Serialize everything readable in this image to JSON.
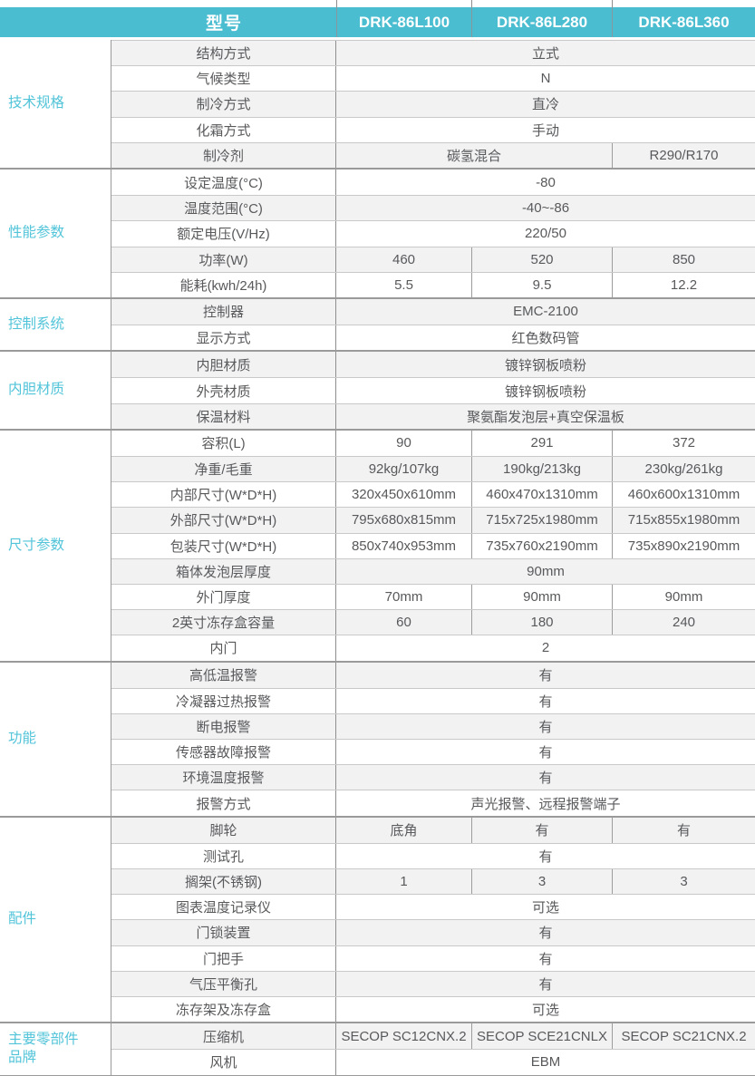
{
  "colors": {
    "header_bg": "#4BBDD0",
    "group_label_text": "#52C4D9",
    "stripe_bg": "#F2F2F3",
    "body_text": "#58595B"
  },
  "table": {
    "header": {
      "label": "型号",
      "models": [
        "DRK-86L100",
        "DRK-86L280",
        "DRK-86L360"
      ]
    },
    "groups": [
      {
        "name": "技术规格",
        "rows": [
          {
            "param": "结构方式",
            "values": [
              {
                "text": "立式",
                "span": 3
              }
            ]
          },
          {
            "param": "气候类型",
            "values": [
              {
                "text": "N",
                "span": 3
              }
            ]
          },
          {
            "param": "制冷方式",
            "values": [
              {
                "text": "直冷",
                "span": 3
              }
            ]
          },
          {
            "param": "化霜方式",
            "values": [
              {
                "text": "手动",
                "span": 3
              }
            ]
          },
          {
            "param": "制冷剂",
            "values": [
              {
                "text": "碳氢混合",
                "span": 2
              },
              {
                "text": "R290/R170",
                "span": 1
              }
            ]
          }
        ]
      },
      {
        "name": "性能参数",
        "rows": [
          {
            "param": "设定温度(°C)",
            "values": [
              {
                "text": "-80",
                "span": 3
              }
            ]
          },
          {
            "param": "温度范围(°C)",
            "values": [
              {
                "text": "-40~-86",
                "span": 3
              }
            ]
          },
          {
            "param": "额定电压(V/Hz)",
            "values": [
              {
                "text": "220/50",
                "span": 3
              }
            ]
          },
          {
            "param": "功率(W)",
            "values": [
              {
                "text": "460",
                "span": 1
              },
              {
                "text": "520",
                "span": 1
              },
              {
                "text": "850",
                "span": 1
              }
            ]
          },
          {
            "param": "能耗(kwh/24h)",
            "values": [
              {
                "text": "5.5",
                "span": 1
              },
              {
                "text": "9.5",
                "span": 1
              },
              {
                "text": "12.2",
                "span": 1
              }
            ]
          }
        ]
      },
      {
        "name": "控制系统",
        "rows": [
          {
            "param": "控制器",
            "values": [
              {
                "text": "EMC-2100",
                "span": 3
              }
            ]
          },
          {
            "param": "显示方式",
            "values": [
              {
                "text": "红色数码管",
                "span": 3
              }
            ]
          }
        ]
      },
      {
        "name": "内胆材质",
        "rows": [
          {
            "param": "内胆材质",
            "values": [
              {
                "text": "镀锌钢板喷粉",
                "span": 3
              }
            ]
          },
          {
            "param": "外壳材质",
            "values": [
              {
                "text": "镀锌钢板喷粉",
                "span": 3
              }
            ]
          },
          {
            "param": "保温材料",
            "values": [
              {
                "text": "聚氨酯发泡层+真空保温板",
                "span": 3
              }
            ]
          }
        ]
      },
      {
        "name": "尺寸参数",
        "rows": [
          {
            "param": "容积(L)",
            "values": [
              {
                "text": "90",
                "span": 1
              },
              {
                "text": "291",
                "span": 1
              },
              {
                "text": "372",
                "span": 1
              }
            ]
          },
          {
            "param": "净重/毛重",
            "values": [
              {
                "text": "92kg/107kg",
                "span": 1
              },
              {
                "text": "190kg/213kg",
                "span": 1
              },
              {
                "text": "230kg/261kg",
                "span": 1
              }
            ]
          },
          {
            "param": "内部尺寸(W*D*H)",
            "values": [
              {
                "text": "320x450x610mm",
                "span": 1
              },
              {
                "text": "460x470x1310mm",
                "span": 1
              },
              {
                "text": "460x600x1310mm",
                "span": 1
              }
            ]
          },
          {
            "param": "外部尺寸(W*D*H)",
            "values": [
              {
                "text": "795x680x815mm",
                "span": 1
              },
              {
                "text": "715x725x1980mm",
                "span": 1
              },
              {
                "text": "715x855x1980mm",
                "span": 1
              }
            ]
          },
          {
            "param": "包装尺寸(W*D*H)",
            "values": [
              {
                "text": "850x740x953mm",
                "span": 1
              },
              {
                "text": "735x760x2190mm",
                "span": 1
              },
              {
                "text": "735x890x2190mm",
                "span": 1
              }
            ]
          },
          {
            "param": "箱体发泡层厚度",
            "values": [
              {
                "text": "90mm",
                "span": 3
              }
            ]
          },
          {
            "param": "外门厚度",
            "values": [
              {
                "text": "70mm",
                "span": 1
              },
              {
                "text": "90mm",
                "span": 1
              },
              {
                "text": "90mm",
                "span": 1
              }
            ]
          },
          {
            "param": "2英寸冻存盒容量",
            "values": [
              {
                "text": "60",
                "span": 1
              },
              {
                "text": "180",
                "span": 1
              },
              {
                "text": "240",
                "span": 1
              }
            ]
          },
          {
            "param": "内门",
            "values": [
              {
                "text": "2",
                "span": 3
              }
            ]
          }
        ]
      },
      {
        "name": "功能",
        "rows": [
          {
            "param": "高低温报警",
            "values": [
              {
                "text": "有",
                "span": 3
              }
            ]
          },
          {
            "param": "冷凝器过热报警",
            "values": [
              {
                "text": "有",
                "span": 3
              }
            ]
          },
          {
            "param": "断电报警",
            "values": [
              {
                "text": "有",
                "span": 3
              }
            ]
          },
          {
            "param": "传感器故障报警",
            "values": [
              {
                "text": "有",
                "span": 3
              }
            ]
          },
          {
            "param": "环境温度报警",
            "values": [
              {
                "text": "有",
                "span": 3
              }
            ]
          },
          {
            "param": "报警方式",
            "values": [
              {
                "text": "声光报警、远程报警端子",
                "span": 3
              }
            ]
          }
        ]
      },
      {
        "name": "配件",
        "rows": [
          {
            "param": "脚轮",
            "values": [
              {
                "text": "底角",
                "span": 1
              },
              {
                "text": "有",
                "span": 1
              },
              {
                "text": "有",
                "span": 1
              }
            ]
          },
          {
            "param": "测试孔",
            "values": [
              {
                "text": "有",
                "span": 3
              }
            ]
          },
          {
            "param": "搁架(不锈钢)",
            "values": [
              {
                "text": "1",
                "span": 1
              },
              {
                "text": "3",
                "span": 1
              },
              {
                "text": "3",
                "span": 1
              }
            ]
          },
          {
            "param": "图表温度记录仪",
            "values": [
              {
                "text": "可选",
                "span": 3
              }
            ]
          },
          {
            "param": "门锁装置",
            "values": [
              {
                "text": "有",
                "span": 3
              }
            ]
          },
          {
            "param": "门把手",
            "values": [
              {
                "text": "有",
                "span": 3
              }
            ]
          },
          {
            "param": "气压平衡孔",
            "values": [
              {
                "text": "有",
                "span": 3
              }
            ]
          },
          {
            "param": "冻存架及冻存盒",
            "values": [
              {
                "text": "可选",
                "span": 3
              }
            ]
          }
        ]
      },
      {
        "name": "主要零部件品牌",
        "rows": [
          {
            "param": "压缩机",
            "values": [
              {
                "text": "SECOP SC12CNX.2",
                "span": 1
              },
              {
                "text": "SECOP SCE21CNLX",
                "span": 1
              },
              {
                "text": "SECOP SC21CNX.2",
                "span": 1
              }
            ]
          },
          {
            "param": "风机",
            "values": [
              {
                "text": "EBM",
                "span": 3
              }
            ]
          }
        ]
      }
    ]
  }
}
